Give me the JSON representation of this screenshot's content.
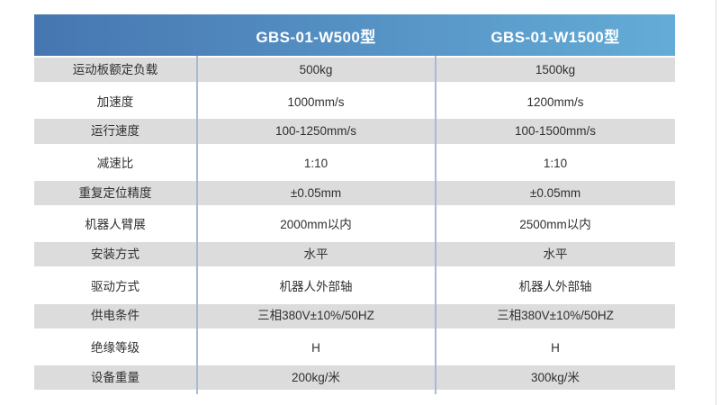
{
  "table": {
    "header": {
      "columns": [
        {
          "label": "GBS-01-W500型"
        },
        {
          "label": "GBS-01-W1500型"
        }
      ]
    },
    "rows": [
      {
        "label": "运动板额定负载",
        "values": [
          "500kg",
          "1500kg"
        ]
      },
      {
        "label": "加速度",
        "values": [
          "1000mm/s",
          "1200mm/s"
        ]
      },
      {
        "label": "运行速度",
        "values": [
          "100-1250mm/s",
          "100-1500mm/s"
        ]
      },
      {
        "label": "减速比",
        "values": [
          "1:10",
          "1:10"
        ]
      },
      {
        "label": "重复定位精度",
        "values": [
          "±0.05mm",
          "±0.05mm"
        ]
      },
      {
        "label": "机器人臂展",
        "values": [
          "2000mm以内",
          "2500mm以内"
        ]
      },
      {
        "label": "安装方式",
        "values": [
          "水平",
          "水平"
        ]
      },
      {
        "label": "驱动方式",
        "values": [
          "机器人外部轴",
          "机器人外部轴"
        ]
      },
      {
        "label": "供电条件",
        "values": [
          "三相380V±10%/50HZ",
          "三相380V±10%/50HZ"
        ]
      },
      {
        "label": "绝缘等级",
        "values": [
          "H",
          "H"
        ]
      },
      {
        "label": "设备重量",
        "values": [
          "200kg/米",
          "300kg/米"
        ]
      }
    ],
    "colors": {
      "header_gradient_left": "#4676b0",
      "header_gradient_right": "#64acd7",
      "shaded_row": "#dcdcdc",
      "divider": "#a9bad8",
      "text": "#303030",
      "header_text": "#ffffff",
      "edge_line": "#dbdbdb"
    }
  }
}
